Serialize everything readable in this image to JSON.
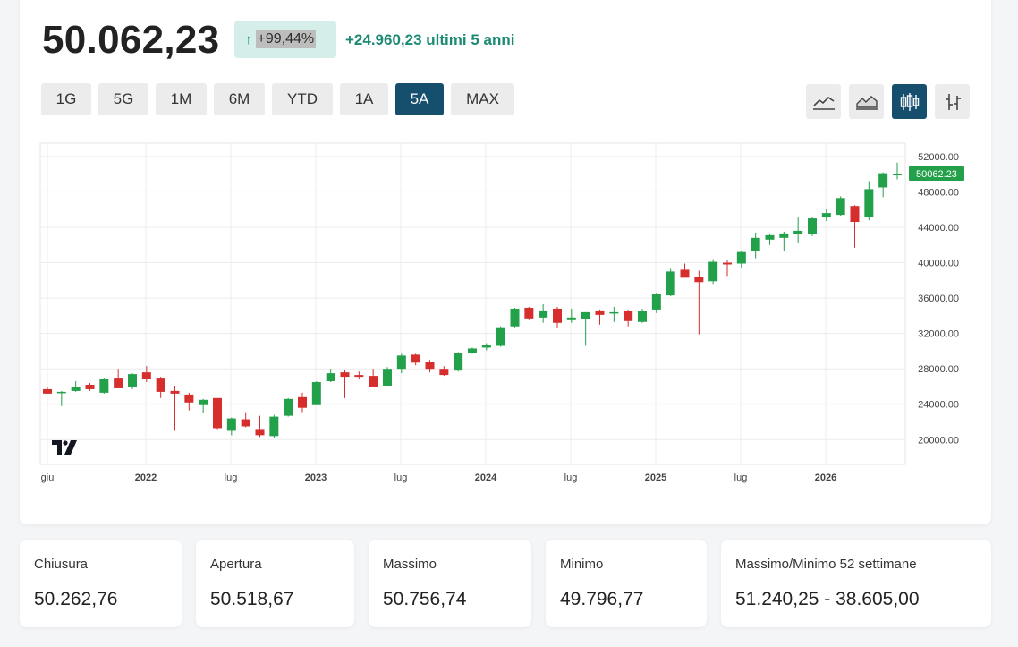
{
  "header": {
    "price": "50.062,23",
    "change_arrow": "↑",
    "change_pct": "+99,44%",
    "change_abs": "+24.960,23 ultimi 5 anni"
  },
  "ranges": [
    "1G",
    "5G",
    "1M",
    "6M",
    "YTD",
    "1A",
    "5A",
    "MAX"
  ],
  "active_range": "5A",
  "chart_types": [
    "line-chart-icon",
    "area-chart-icon",
    "candlestick-chart-icon",
    "ohlc-bar-chart-icon"
  ],
  "active_chart_type": "candlestick-chart-icon",
  "colors": {
    "up": "#22a04a",
    "down": "#d62d2d",
    "accent": "#164e6e",
    "positive_text": "#1d8b74"
  },
  "chart_data": {
    "type": "candlestick",
    "x_tick_labels": [
      "giu",
      "2022",
      "lug",
      "2023",
      "lug",
      "2024",
      "lug",
      "2025",
      "lug",
      "2026"
    ],
    "bold_x_ticks": [
      "2022",
      "2023",
      "2024",
      "2025",
      "2026"
    ],
    "y_ticks": [
      "20000.00",
      "24000.00",
      "28000.00",
      "32000.00",
      "36000.00",
      "40000.00",
      "44000.00",
      "48000.00",
      "52000.00"
    ],
    "ylim": [
      17200,
      53500
    ],
    "last_price_label": "50062.23",
    "grid": true,
    "candles": [
      {
        "o": 25700,
        "h": 25900,
        "l": 25200,
        "c": 25200
      },
      {
        "o": 25350,
        "h": 25500,
        "l": 23800,
        "c": 25400
      },
      {
        "o": 25500,
        "h": 26600,
        "l": 25400,
        "c": 26000
      },
      {
        "o": 26200,
        "h": 26400,
        "l": 25500,
        "c": 25700
      },
      {
        "o": 25300,
        "h": 27000,
        "l": 25200,
        "c": 26900
      },
      {
        "o": 27000,
        "h": 28000,
        "l": 25800,
        "c": 25800
      },
      {
        "o": 26000,
        "h": 27500,
        "l": 25700,
        "c": 27400
      },
      {
        "o": 27600,
        "h": 28300,
        "l": 26500,
        "c": 26900
      },
      {
        "o": 27000,
        "h": 27100,
        "l": 24700,
        "c": 25400
      },
      {
        "o": 25500,
        "h": 26100,
        "l": 21000,
        "c": 25200
      },
      {
        "o": 25100,
        "h": 25300,
        "l": 23300,
        "c": 24200
      },
      {
        "o": 23900,
        "h": 24600,
        "l": 23000,
        "c": 24500
      },
      {
        "o": 24700,
        "h": 24700,
        "l": 21200,
        "c": 21300
      },
      {
        "o": 21000,
        "h": 22500,
        "l": 20500,
        "c": 22400
      },
      {
        "o": 22300,
        "h": 23100,
        "l": 21400,
        "c": 21500
      },
      {
        "o": 21200,
        "h": 22700,
        "l": 20300,
        "c": 20500
      },
      {
        "o": 20400,
        "h": 22800,
        "l": 20200,
        "c": 22600
      },
      {
        "o": 22700,
        "h": 24700,
        "l": 22600,
        "c": 24600
      },
      {
        "o": 24800,
        "h": 25300,
        "l": 23100,
        "c": 23600
      },
      {
        "o": 23900,
        "h": 26600,
        "l": 23900,
        "c": 26500
      },
      {
        "o": 26600,
        "h": 28000,
        "l": 26500,
        "c": 27500
      },
      {
        "o": 27600,
        "h": 27900,
        "l": 24700,
        "c": 27100
      },
      {
        "o": 27300,
        "h": 27700,
        "l": 26800,
        "c": 27100
      },
      {
        "o": 27200,
        "h": 28000,
        "l": 26100,
        "c": 26000
      },
      {
        "o": 26100,
        "h": 28200,
        "l": 26100,
        "c": 28000
      },
      {
        "o": 28000,
        "h": 29700,
        "l": 27500,
        "c": 29500
      },
      {
        "o": 29600,
        "h": 29700,
        "l": 28400,
        "c": 28700
      },
      {
        "o": 28800,
        "h": 29000,
        "l": 27600,
        "c": 28000
      },
      {
        "o": 28000,
        "h": 28300,
        "l": 27200,
        "c": 27300
      },
      {
        "o": 27800,
        "h": 29900,
        "l": 27700,
        "c": 29800
      },
      {
        "o": 29800,
        "h": 30400,
        "l": 29700,
        "c": 30300
      },
      {
        "o": 30400,
        "h": 30900,
        "l": 30100,
        "c": 30700
      },
      {
        "o": 30600,
        "h": 32800,
        "l": 30500,
        "c": 32700
      },
      {
        "o": 32800,
        "h": 34900,
        "l": 32700,
        "c": 34800
      },
      {
        "o": 34900,
        "h": 35000,
        "l": 33500,
        "c": 33700
      },
      {
        "o": 33800,
        "h": 35300,
        "l": 33200,
        "c": 34600
      },
      {
        "o": 34800,
        "h": 35000,
        "l": 32600,
        "c": 33200
      },
      {
        "o": 33500,
        "h": 34800,
        "l": 33200,
        "c": 33800
      },
      {
        "o": 33600,
        "h": 34400,
        "l": 30600,
        "c": 34400
      },
      {
        "o": 34600,
        "h": 34700,
        "l": 33000,
        "c": 34100
      },
      {
        "o": 34300,
        "h": 35000,
        "l": 33300,
        "c": 34400
      },
      {
        "o": 34500,
        "h": 34700,
        "l": 32800,
        "c": 33400
      },
      {
        "o": 33300,
        "h": 34800,
        "l": 33200,
        "c": 34500
      },
      {
        "o": 34700,
        "h": 36600,
        "l": 34300,
        "c": 36500
      },
      {
        "o": 36300,
        "h": 39300,
        "l": 36200,
        "c": 39000
      },
      {
        "o": 39200,
        "h": 39900,
        "l": 38300,
        "c": 38300
      },
      {
        "o": 38400,
        "h": 39100,
        "l": 31900,
        "c": 37800
      },
      {
        "o": 37900,
        "h": 40400,
        "l": 37600,
        "c": 40100
      },
      {
        "o": 40000,
        "h": 40300,
        "l": 38500,
        "c": 39800
      },
      {
        "o": 39900,
        "h": 41300,
        "l": 39400,
        "c": 41200
      },
      {
        "o": 41300,
        "h": 43400,
        "l": 40500,
        "c": 42800
      },
      {
        "o": 42600,
        "h": 43200,
        "l": 42000,
        "c": 43100
      },
      {
        "o": 42800,
        "h": 43500,
        "l": 41300,
        "c": 43300
      },
      {
        "o": 43200,
        "h": 45100,
        "l": 42200,
        "c": 43600
      },
      {
        "o": 43200,
        "h": 45200,
        "l": 43000,
        "c": 45000
      },
      {
        "o": 45100,
        "h": 46100,
        "l": 44700,
        "c": 45600
      },
      {
        "o": 45400,
        "h": 47500,
        "l": 45300,
        "c": 47300
      },
      {
        "o": 46400,
        "h": 46500,
        "l": 41700,
        "c": 44600
      },
      {
        "o": 45200,
        "h": 49200,
        "l": 44800,
        "c": 48300
      },
      {
        "o": 48500,
        "h": 50200,
        "l": 47400,
        "c": 50100
      },
      {
        "o": 50000,
        "h": 51300,
        "l": 49400,
        "c": 50062
      }
    ]
  },
  "stats": [
    {
      "label": "Chiusura",
      "value": "50.262,76"
    },
    {
      "label": "Apertura",
      "value": "50.518,67"
    },
    {
      "label": "Massimo",
      "value": "50.756,74"
    },
    {
      "label": "Minimo",
      "value": "49.796,77"
    },
    {
      "label": "Massimo/Minimo 52 settimane",
      "value": "51.240,25 - 38.605,00"
    }
  ]
}
